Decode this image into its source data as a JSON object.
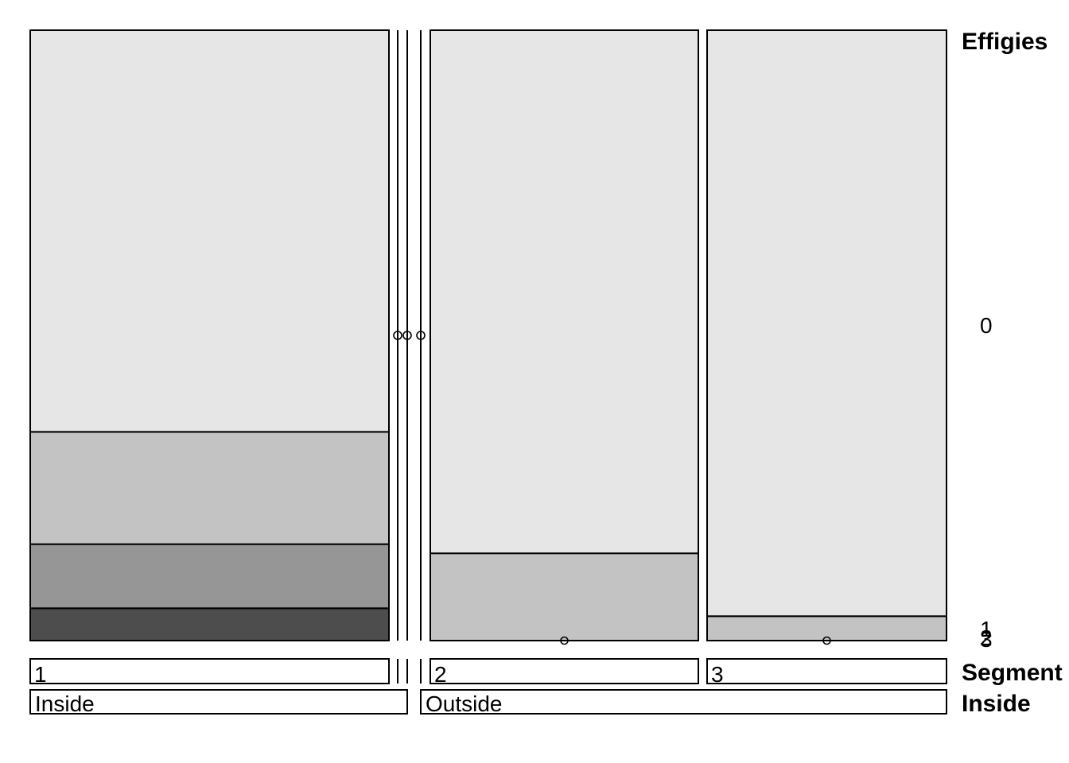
{
  "chart_data": {
    "type": "mosaic",
    "variables": {
      "response": "Effigies",
      "strip1": "Segment",
      "strip2": "Inside"
    },
    "levels": {
      "Effigies": [
        "0",
        "1",
        "2",
        "3"
      ],
      "Segment": [
        "1",
        "2",
        "3"
      ],
      "Inside": [
        "Inside",
        "Outside"
      ]
    },
    "colors": {
      "0": "#e6e6e6",
      "1": "#c3c3c3",
      "2": "#969696",
      "3": "#4d4d4d"
    },
    "cells": [
      {
        "Inside": "Inside",
        "Segment": "1",
        "width": 0.392,
        "proportions": [
          0.658,
          0.184,
          0.105,
          0.053
        ]
      },
      {
        "Inside": "Inside",
        "Segment": "2",
        "width": 0.0,
        "proportions": [
          0,
          0,
          0,
          0
        ]
      },
      {
        "Inside": "Inside",
        "Segment": "3",
        "width": 0.0,
        "proportions": [
          0,
          0,
          0,
          0
        ]
      },
      {
        "Inside": "Outside",
        "Segment": "1",
        "width": 0.0,
        "proportions": [
          0,
          0,
          0,
          0
        ]
      },
      {
        "Inside": "Outside",
        "Segment": "2",
        "width": 0.293,
        "proportions": [
          0.857,
          0.143,
          0,
          0
        ]
      },
      {
        "Inside": "Outside",
        "Segment": "3",
        "width": 0.262,
        "proportions": [
          0.96,
          0.04,
          0,
          0
        ]
      }
    ],
    "right_labels": [
      "0",
      "1",
      "2",
      "3"
    ]
  }
}
